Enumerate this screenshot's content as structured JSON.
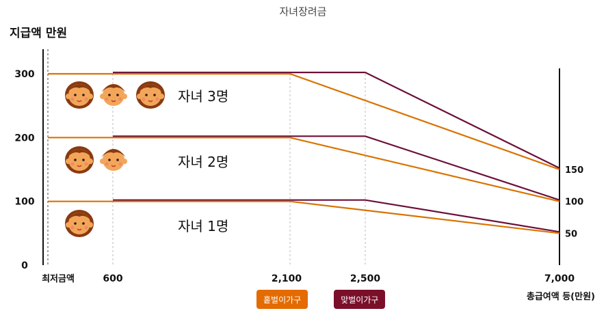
{
  "chart_data": {
    "type": "line",
    "title": "자녀장려금",
    "ylabel": "지급액 만원",
    "xlabel": "총급여액 등(만원)",
    "x_tick_labels": [
      "최저금액",
      "600",
      "2,100",
      "2,500",
      "7,000"
    ],
    "y_tick_labels": [
      "0",
      "100",
      "200",
      "300"
    ],
    "right_tick_labels": [
      "50",
      "100",
      "150"
    ],
    "ylim": [
      0,
      350
    ],
    "groups": [
      {
        "label": "자녀 1명",
        "children": 1,
        "single": {
          "x": [
            0,
            2100,
            7000
          ],
          "y": [
            100,
            100,
            50
          ]
        },
        "dual": {
          "x": [
            600,
            2500,
            7000
          ],
          "y": [
            100,
            100,
            50
          ]
        }
      },
      {
        "label": "자녀 2명",
        "children": 2,
        "single": {
          "x": [
            0,
            2100,
            7000
          ],
          "y": [
            200,
            200,
            100
          ]
        },
        "dual": {
          "x": [
            600,
            2500,
            7000
          ],
          "y": [
            200,
            200,
            100
          ]
        }
      },
      {
        "label": "자녀 3명",
        "children": 3,
        "single": {
          "x": [
            0,
            2100,
            7000
          ],
          "y": [
            300,
            300,
            150
          ]
        },
        "dual": {
          "x": [
            600,
            2500,
            7000
          ],
          "y": [
            300,
            300,
            150
          ]
        }
      }
    ],
    "series": [
      {
        "name": "홑벌이가구",
        "color": "#d97300"
      },
      {
        "name": "맞벌이가구",
        "color": "#6b0f3a"
      }
    ],
    "grid": "vertical-dashed"
  }
}
